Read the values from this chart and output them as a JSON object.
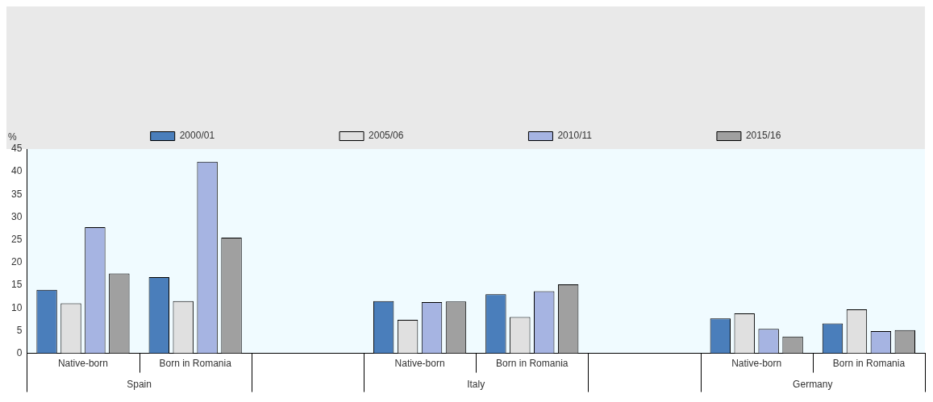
{
  "chart_data": {
    "type": "bar",
    "ylabel": "%",
    "categories": [
      "Native-born",
      "Born in Romania",
      null,
      "Native-born",
      "Born in Romania",
      null,
      "Native-born",
      "Born in Romania"
    ],
    "series": [
      {
        "name": "2000/01",
        "color": "#4a7ebb",
        "values": [
          14,
          16.8,
          null,
          11.5,
          13,
          null,
          7.7,
          6.6
        ]
      },
      {
        "name": "2005/06",
        "color": "#e0e0e0",
        "values": [
          11,
          11.5,
          null,
          7.4,
          8,
          null,
          8.8,
          9.7
        ]
      },
      {
        "name": "2010/11",
        "color": "#a6b4e2",
        "values": [
          27.8,
          42.2,
          null,
          11.3,
          13.7,
          null,
          5.4,
          4.9
        ]
      },
      {
        "name": "2015/16",
        "color": "#a0a0a0",
        "values": [
          17.6,
          25.5,
          null,
          11.4,
          15.2,
          null,
          3.7,
          5.1
        ]
      }
    ],
    "ylim": [
      0,
      45
    ],
    "yticks": [
      0,
      5,
      10,
      15,
      20,
      25,
      30,
      35,
      40,
      45
    ],
    "grid": false,
    "legend": "top",
    "annotations": [
      "Spain",
      "Italy",
      "Germany"
    ]
  }
}
